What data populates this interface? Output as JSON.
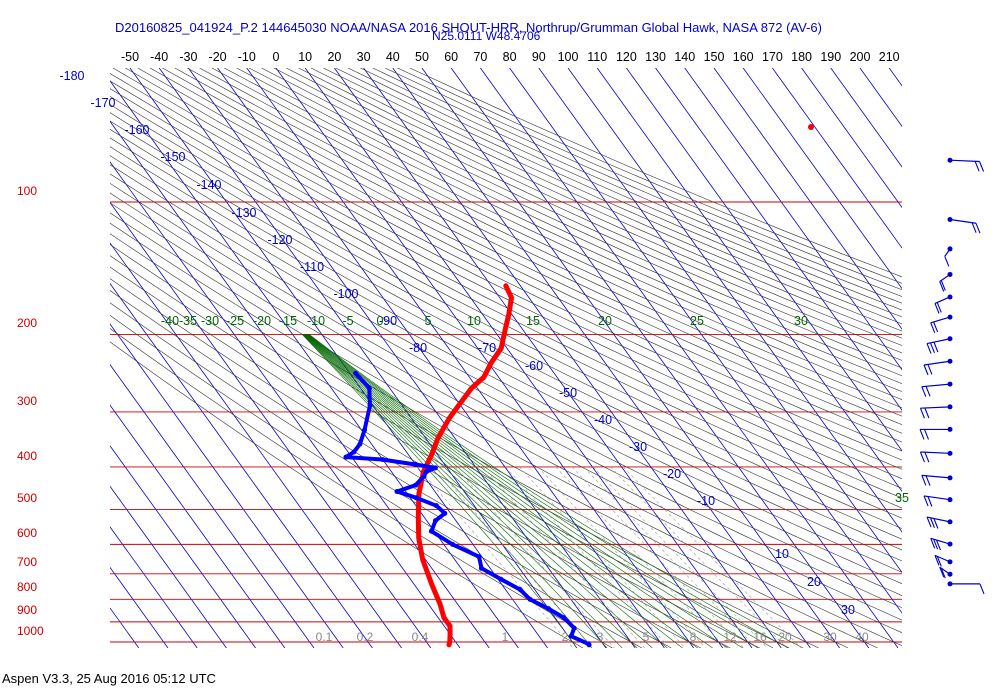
{
  "header": {
    "title_line1": "D20160825_041924_P.2 144645030 NOAA/NASA 2016 SHOUT-HRR, Northrup/Grumman Global Hawk, NASA 872 (AV-6)",
    "title_line2": "N25.0111 W48.4706"
  },
  "footer": {
    "text": "Aspen V3.3, 25 Aug 2016  05:12 UTC"
  },
  "chart_data": {
    "type": "skew-t",
    "temperature_ticks": [
      "-50",
      "-40",
      "-30",
      "-20",
      "-10",
      "0",
      "10",
      "20",
      "30",
      "40",
      "50",
      "60",
      "70",
      "80",
      "90",
      "100",
      "110",
      "120",
      "130",
      "140",
      "150",
      "160",
      "170",
      "180",
      "190",
      "200",
      "210"
    ],
    "pressure_labels": [
      "100",
      "200",
      "300",
      "400",
      "500",
      "600",
      "700",
      "800",
      "900",
      "1000"
    ],
    "dry_adiabat_labels": [
      "-180",
      "-170",
      "-160",
      "-150",
      "-140",
      "-130",
      "-120",
      "-110",
      "-100",
      "-90",
      "-80",
      "-70",
      "-60",
      "-50",
      "-40",
      "-30",
      "-20",
      "-10",
      "10",
      "20",
      "30"
    ],
    "moist_adiabat_labels": [
      "-40",
      "-35",
      "-30",
      "-25",
      "-20",
      "-15",
      "-10",
      "-5",
      "0",
      "5",
      "10",
      "15",
      "20",
      "25",
      "30",
      "35"
    ],
    "mixing_ratio_labels": [
      "0.1",
      "0.2",
      "0.4",
      "1",
      "2",
      "3",
      "5",
      "8",
      "12",
      "16",
      "20",
      "30",
      "40"
    ],
    "colors": {
      "isobar": "#cc0000",
      "isotherm": "#0000cc",
      "dry_adiabat": "#333333",
      "moist_adiabat": "#006600",
      "mixing_ratio": "#999999",
      "temperature": "#ff0000",
      "dewpoint": "#0000ff"
    },
    "temperature_profile": [
      {
        "p": 155,
        "t": 25
      },
      {
        "p": 165,
        "t": 24
      },
      {
        "p": 180,
        "t": 19
      },
      {
        "p": 195,
        "t": 14
      },
      {
        "p": 215,
        "t": 8
      },
      {
        "p": 232,
        "t": 1
      },
      {
        "p": 250,
        "t": -5
      },
      {
        "p": 265,
        "t": -12
      },
      {
        "p": 285,
        "t": -19
      },
      {
        "p": 310,
        "t": -27
      },
      {
        "p": 345,
        "t": -36
      },
      {
        "p": 375,
        "t": -42
      },
      {
        "p": 410,
        "t": -49
      },
      {
        "p": 460,
        "t": -56
      },
      {
        "p": 520,
        "t": -62
      },
      {
        "p": 580,
        "t": -67
      },
      {
        "p": 650,
        "t": -71
      },
      {
        "p": 740,
        "t": -74
      },
      {
        "p": 820,
        "t": -76
      },
      {
        "p": 880,
        "t": -78
      },
      {
        "p": 920,
        "t": -78
      },
      {
        "p": 960,
        "t": -80
      },
      {
        "p": 1000,
        "t": -82
      },
      {
        "p": 1015,
        "t": -83
      }
    ],
    "dewpoint_profile": [
      {
        "p": 245,
        "t": -48
      },
      {
        "p": 265,
        "t": -47
      },
      {
        "p": 290,
        "t": -51
      },
      {
        "p": 330,
        "t": -59
      },
      {
        "p": 355,
        "t": -64
      },
      {
        "p": 370,
        "t": -68
      },
      {
        "p": 380,
        "t": -72
      },
      {
        "p": 385,
        "t": -60
      },
      {
        "p": 395,
        "t": -50
      },
      {
        "p": 402,
        "t": -44
      },
      {
        "p": 410,
        "t": -48
      },
      {
        "p": 420,
        "t": -50
      },
      {
        "p": 440,
        "t": -55
      },
      {
        "p": 455,
        "t": -63
      },
      {
        "p": 470,
        "t": -58
      },
      {
        "p": 490,
        "t": -53
      },
      {
        "p": 510,
        "t": -52
      },
      {
        "p": 530,
        "t": -57
      },
      {
        "p": 560,
        "t": -61
      },
      {
        "p": 600,
        "t": -57
      },
      {
        "p": 640,
        "t": -51
      },
      {
        "p": 680,
        "t": -53
      },
      {
        "p": 720,
        "t": -49
      },
      {
        "p": 760,
        "t": -45
      },
      {
        "p": 800,
        "t": -44
      },
      {
        "p": 840,
        "t": -40
      },
      {
        "p": 880,
        "t": -37
      },
      {
        "p": 930,
        "t": -36
      },
      {
        "p": 970,
        "t": -39
      },
      {
        "p": 1010,
        "t": -35
      },
      {
        "p": 1015,
        "t": -35
      }
    ],
    "isolated_point": {
      "p": 115,
      "t": 54
    },
    "wind_barbs": [
      {
        "p": 110,
        "dir": 280,
        "spd": 15
      },
      {
        "p": 150,
        "dir": 300,
        "spd": 20
      },
      {
        "p": 175,
        "dir": 10,
        "spd": 10
      },
      {
        "p": 200,
        "dir": 20,
        "spd": 15
      },
      {
        "p": 225,
        "dir": 30,
        "spd": 20
      },
      {
        "p": 250,
        "dir": 40,
        "spd": 20
      },
      {
        "p": 280,
        "dir": 50,
        "spd": 25
      },
      {
        "p": 315,
        "dir": 60,
        "spd": 20
      },
      {
        "p": 355,
        "dir": 70,
        "spd": 20
      },
      {
        "p": 400,
        "dir": 80,
        "spd": 20
      },
      {
        "p": 450,
        "dir": 90,
        "spd": 15
      },
      {
        "p": 510,
        "dir": 100,
        "spd": 15
      },
      {
        "p": 580,
        "dir": 110,
        "spd": 15
      },
      {
        "p": 650,
        "dir": 120,
        "spd": 20
      },
      {
        "p": 730,
        "dir": 130,
        "spd": 25
      },
      {
        "p": 820,
        "dir": 140,
        "spd": 25
      },
      {
        "p": 900,
        "dir": 150,
        "spd": 20
      },
      {
        "p": 960,
        "dir": 160,
        "spd": 20
      },
      {
        "p": 1010,
        "dir": 270,
        "spd": 10
      }
    ]
  }
}
